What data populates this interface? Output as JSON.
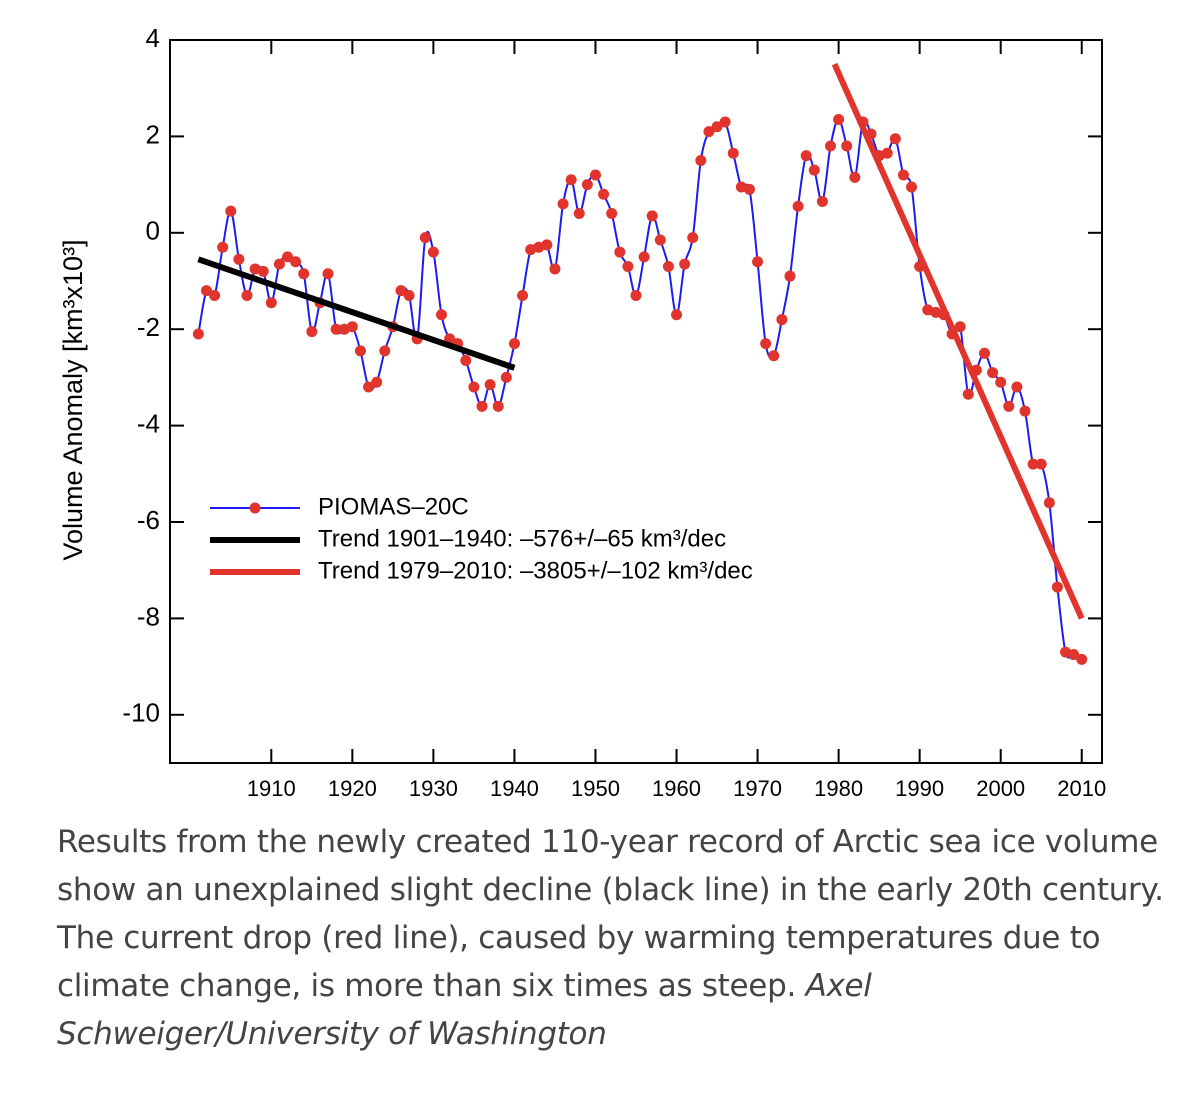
{
  "chart_data": {
    "type": "line",
    "y_label": "Volume Anomaly [km³x10³]",
    "xlim": [
      1897.5,
      2012.5
    ],
    "ylim": [
      -11,
      4
    ],
    "xticks": [
      1910,
      1920,
      1930,
      1940,
      1950,
      1960,
      1970,
      1980,
      1990,
      2000,
      2010
    ],
    "yticks": [
      -10,
      -8,
      -6,
      -4,
      -2,
      0,
      2,
      4
    ],
    "series": [
      {
        "name": "PIOMAS–20C",
        "color": "#1c1cf0",
        "marker_color": "#e0342c",
        "x": [
          1901,
          1902,
          1903,
          1904,
          1905,
          1906,
          1907,
          1908,
          1909,
          1910,
          1911,
          1912,
          1913,
          1914,
          1915,
          1916,
          1917,
          1918,
          1919,
          1920,
          1921,
          1922,
          1923,
          1924,
          1925,
          1926,
          1927,
          1928,
          1929,
          1930,
          1931,
          1932,
          1933,
          1934,
          1935,
          1936,
          1937,
          1938,
          1939,
          1940,
          1941,
          1942,
          1943,
          1944,
          1945,
          1946,
          1947,
          1948,
          1949,
          1950,
          1951,
          1952,
          1953,
          1954,
          1955,
          1956,
          1957,
          1958,
          1959,
          1960,
          1961,
          1962,
          1963,
          1964,
          1965,
          1966,
          1967,
          1968,
          1969,
          1970,
          1971,
          1972,
          1973,
          1974,
          1975,
          1976,
          1977,
          1978,
          1979,
          1980,
          1981,
          1982,
          1983,
          1984,
          1985,
          1986,
          1987,
          1988,
          1989,
          1990,
          1991,
          1992,
          1993,
          1994,
          1995,
          1996,
          1997,
          1998,
          1999,
          2000,
          2001,
          2002,
          2003,
          2004,
          2005,
          2006,
          2007,
          2008,
          2009,
          2010
        ],
        "values": [
          -2.1,
          -1.2,
          -1.3,
          -0.3,
          0.45,
          -0.55,
          -1.3,
          -0.75,
          -0.8,
          -1.45,
          -0.65,
          -0.5,
          -0.6,
          -0.85,
          -2.05,
          -1.45,
          -0.85,
          -2.0,
          -2.0,
          -1.95,
          -2.45,
          -3.2,
          -3.1,
          -2.45,
          -1.95,
          -1.2,
          -1.3,
          -2.2,
          -0.1,
          -0.4,
          -1.7,
          -2.2,
          -2.3,
          -2.65,
          -3.2,
          -3.6,
          -3.15,
          -3.6,
          -3.0,
          -2.3,
          -1.3,
          -0.35,
          -0.3,
          -0.25,
          -0.75,
          0.6,
          1.1,
          0.4,
          1.0,
          1.2,
          0.8,
          0.4,
          -0.4,
          -0.7,
          -1.3,
          -0.5,
          0.35,
          -0.15,
          -0.7,
          -1.7,
          -0.65,
          -0.1,
          1.5,
          2.1,
          2.2,
          2.3,
          1.65,
          0.95,
          0.9,
          -0.6,
          -2.3,
          -2.55,
          -1.8,
          -0.9,
          0.55,
          1.6,
          1.3,
          0.65,
          1.8,
          2.35,
          1.8,
          1.15,
          2.3,
          2.05,
          1.6,
          1.65,
          1.95,
          1.2,
          0.95,
          -0.7,
          -1.6,
          -1.65,
          -1.7,
          -2.1,
          -1.95,
          -3.35,
          -2.85,
          -2.5,
          -2.9,
          -3.1,
          -3.6,
          -3.2,
          -3.7,
          -4.8,
          -4.8,
          -5.6,
          -7.35,
          -8.7,
          -8.75,
          -8.85
        ]
      },
      {
        "name": "Trend 1901–1940:  –576+/–65 km³/dec",
        "color": "#000000",
        "x": [
          1901,
          1940
        ],
        "values": [
          -0.55,
          -2.8
        ]
      },
      {
        "name": "Trend 1979–2010: –3805+/–102 km³/dec",
        "color": "#e0342c",
        "x": [
          1979.5,
          2010
        ],
        "values": [
          3.5,
          -8.0
        ]
      }
    ]
  },
  "caption": "Results from the newly created 110-year record of Arctic sea ice volume show an unexplained slight decline (black line) in the early 20th century. The current drop (red line), caused by warming temperatures due to climate change, is more than six times as steep.",
  "credit": "Axel Schweiger/University of Washington"
}
